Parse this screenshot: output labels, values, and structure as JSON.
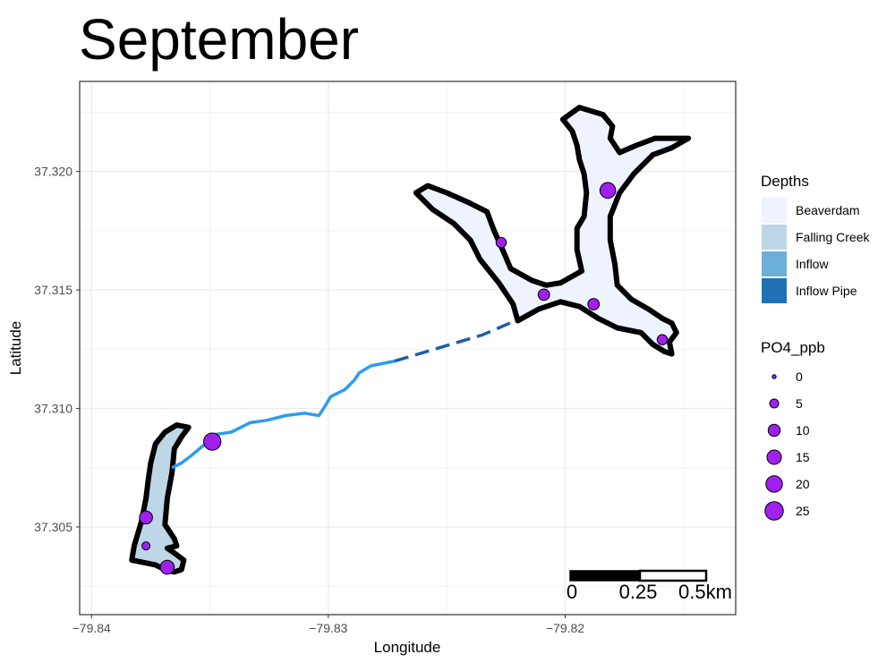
{
  "chart_data": {
    "type": "map",
    "title": "September",
    "xlabel": "Longitude",
    "ylabel": "Latitude",
    "xlim": [
      -79.8405,
      -79.8128
    ],
    "ylim": [
      37.3013,
      37.3238
    ],
    "x_ticks": [
      {
        "value": -79.84,
        "label": "−79.84"
      },
      {
        "value": -79.83,
        "label": "−79.83"
      },
      {
        "value": -79.82,
        "label": "−79.82"
      }
    ],
    "y_ticks": [
      {
        "value": 37.305,
        "label": "37.305"
      },
      {
        "value": 37.31,
        "label": "37.310"
      },
      {
        "value": 37.315,
        "label": "37.315"
      },
      {
        "value": 37.32,
        "label": "37.320"
      }
    ],
    "grid": true,
    "legend_placement": "right",
    "depth_legend": {
      "title": "Depths",
      "entries": [
        {
          "label": "Beaverdam",
          "color": "#eff3ff"
        },
        {
          "label": "Falling Creek",
          "color": "#bdd7e7"
        },
        {
          "label": "Inflow",
          "color": "#6baed6"
        },
        {
          "label": "Inflow Pipe",
          "color": "#2171b5"
        }
      ]
    },
    "size_legend": {
      "title": "PO4_ppb",
      "entries": [
        {
          "label": "0",
          "value": 0
        },
        {
          "label": "5",
          "value": 5
        },
        {
          "label": "10",
          "value": 10
        },
        {
          "label": "15",
          "value": 15
        },
        {
          "label": "20",
          "value": 20
        },
        {
          "label": "25",
          "value": 25
        }
      ]
    },
    "point_color": "#a020f0",
    "reservoirs": [
      {
        "name": "Beaverdam",
        "fill": "#eff3ff",
        "outline": [
          [
            -79.8263,
            37.3191
          ],
          [
            -79.8256,
            37.3184
          ],
          [
            -79.8247,
            37.3178
          ],
          [
            -79.824,
            37.3171
          ],
          [
            -79.8236,
            37.3163
          ],
          [
            -79.8228,
            37.3153
          ],
          [
            -79.8222,
            37.3144
          ],
          [
            -79.822,
            37.3137
          ],
          [
            -79.8211,
            37.3142
          ],
          [
            -79.8202,
            37.3145
          ],
          [
            -79.8194,
            37.3143
          ],
          [
            -79.8186,
            37.3138
          ],
          [
            -79.8178,
            37.3134
          ],
          [
            -79.8168,
            37.3132
          ],
          [
            -79.8163,
            37.3127
          ],
          [
            -79.8158,
            37.3124
          ],
          [
            -79.8155,
            37.3123
          ],
          [
            -79.8156,
            37.3128
          ],
          [
            -79.8153,
            37.3132
          ],
          [
            -79.8155,
            37.3136
          ],
          [
            -79.8159,
            37.3138
          ],
          [
            -79.8165,
            37.3142
          ],
          [
            -79.8172,
            37.3146
          ],
          [
            -79.8178,
            37.3152
          ],
          [
            -79.8179,
            37.3161
          ],
          [
            -79.8181,
            37.3171
          ],
          [
            -79.8181,
            37.3181
          ],
          [
            -79.8177,
            37.3191
          ],
          [
            -79.8171,
            37.3199
          ],
          [
            -79.8163,
            37.3207
          ],
          [
            -79.8155,
            37.321
          ],
          [
            -79.8148,
            37.3214
          ],
          [
            -79.8162,
            37.3214
          ],
          [
            -79.817,
            37.3211
          ],
          [
            -79.8177,
            37.3208
          ],
          [
            -79.8181,
            37.3214
          ],
          [
            -79.818,
            37.3219
          ],
          [
            -79.8184,
            37.3224
          ],
          [
            -79.8194,
            37.3227
          ],
          [
            -79.8201,
            37.3222
          ],
          [
            -79.8197,
            37.3217
          ],
          [
            -79.8195,
            37.3211
          ],
          [
            -79.8194,
            37.3205
          ],
          [
            -79.8192,
            37.3199
          ],
          [
            -79.8191,
            37.3191
          ],
          [
            -79.8192,
            37.3181
          ],
          [
            -79.8195,
            37.3176
          ],
          [
            -79.8195,
            37.3167
          ],
          [
            -79.8193,
            37.3158
          ],
          [
            -79.8202,
            37.3153
          ],
          [
            -79.8208,
            37.3152
          ],
          [
            -79.8214,
            37.3154
          ],
          [
            -79.8223,
            37.3159
          ],
          [
            -79.8226,
            37.3166
          ],
          [
            -79.823,
            37.3175
          ],
          [
            -79.8233,
            37.3183
          ],
          [
            -79.8241,
            37.3187
          ],
          [
            -79.825,
            37.3191
          ],
          [
            -79.8258,
            37.3194
          ],
          [
            -79.8263,
            37.3191
          ]
        ]
      },
      {
        "name": "Falling Creek",
        "fill": "#bdd7e7",
        "outline": [
          [
            -79.8379,
            37.3052
          ],
          [
            -79.8382,
            37.3042
          ],
          [
            -79.8383,
            37.3036
          ],
          [
            -79.8378,
            37.3035
          ],
          [
            -79.8373,
            37.3034
          ],
          [
            -79.8369,
            37.3032
          ],
          [
            -79.8365,
            37.3031
          ],
          [
            -79.8362,
            37.3032
          ],
          [
            -79.8361,
            37.3036
          ],
          [
            -79.8365,
            37.3039
          ],
          [
            -79.8368,
            37.3041
          ],
          [
            -79.8364,
            37.3042
          ],
          [
            -79.8365,
            37.3045
          ],
          [
            -79.8369,
            37.3051
          ],
          [
            -79.8368,
            37.3062
          ],
          [
            -79.8366,
            37.3073
          ],
          [
            -79.8365,
            37.3083
          ],
          [
            -79.8362,
            37.3088
          ],
          [
            -79.8359,
            37.3092
          ],
          [
            -79.8364,
            37.3093
          ],
          [
            -79.8369,
            37.309
          ],
          [
            -79.8373,
            37.3085
          ],
          [
            -79.8375,
            37.3077
          ],
          [
            -79.8376,
            37.307
          ],
          [
            -79.8377,
            37.3062
          ],
          [
            -79.8379,
            37.3052
          ]
        ]
      }
    ],
    "inflow_stream": {
      "color": "#2e9bf0",
      "points": [
        [
          -79.8366,
          37.3075
        ],
        [
          -79.8362,
          37.3077
        ],
        [
          -79.8358,
          37.308
        ],
        [
          -79.8352,
          37.3085
        ],
        [
          -79.8348,
          37.3089
        ],
        [
          -79.8341,
          37.309
        ],
        [
          -79.8333,
          37.3094
        ],
        [
          -79.8326,
          37.3095
        ],
        [
          -79.8318,
          37.3097
        ],
        [
          -79.831,
          37.3098
        ],
        [
          -79.8304,
          37.3097
        ],
        [
          -79.8302,
          37.31
        ],
        [
          -79.8299,
          37.3105
        ],
        [
          -79.8293,
          37.3108
        ],
        [
          -79.8289,
          37.3112
        ],
        [
          -79.8287,
          37.3115
        ],
        [
          -79.8282,
          37.3118
        ],
        [
          -79.8272,
          37.312
        ]
      ]
    },
    "inflow_pipe": {
      "color": "#1f5ea8",
      "points": [
        [
          -79.8272,
          37.312
        ],
        [
          -79.8235,
          37.3131
        ],
        [
          -79.8221,
          37.3137
        ]
      ]
    },
    "points": [
      {
        "lon": -79.8377,
        "lat": 37.3054,
        "po4": 12
      },
      {
        "lon": -79.8377,
        "lat": 37.3042,
        "po4": 4
      },
      {
        "lon": -79.8368,
        "lat": 37.3033,
        "po4": 14
      },
      {
        "lon": -79.8349,
        "lat": 37.3086,
        "po4": 22
      },
      {
        "lon": -79.8227,
        "lat": 37.317,
        "po4": 7
      },
      {
        "lon": -79.8182,
        "lat": 37.3192,
        "po4": 18
      },
      {
        "lon": -79.8209,
        "lat": 37.3148,
        "po4": 9
      },
      {
        "lon": -79.8188,
        "lat": 37.3144,
        "po4": 9
      },
      {
        "lon": -79.8159,
        "lat": 37.3129,
        "po4": 7
      }
    ],
    "scale_bar": {
      "labels": [
        "0",
        "0.25",
        "0.5km"
      ]
    }
  }
}
